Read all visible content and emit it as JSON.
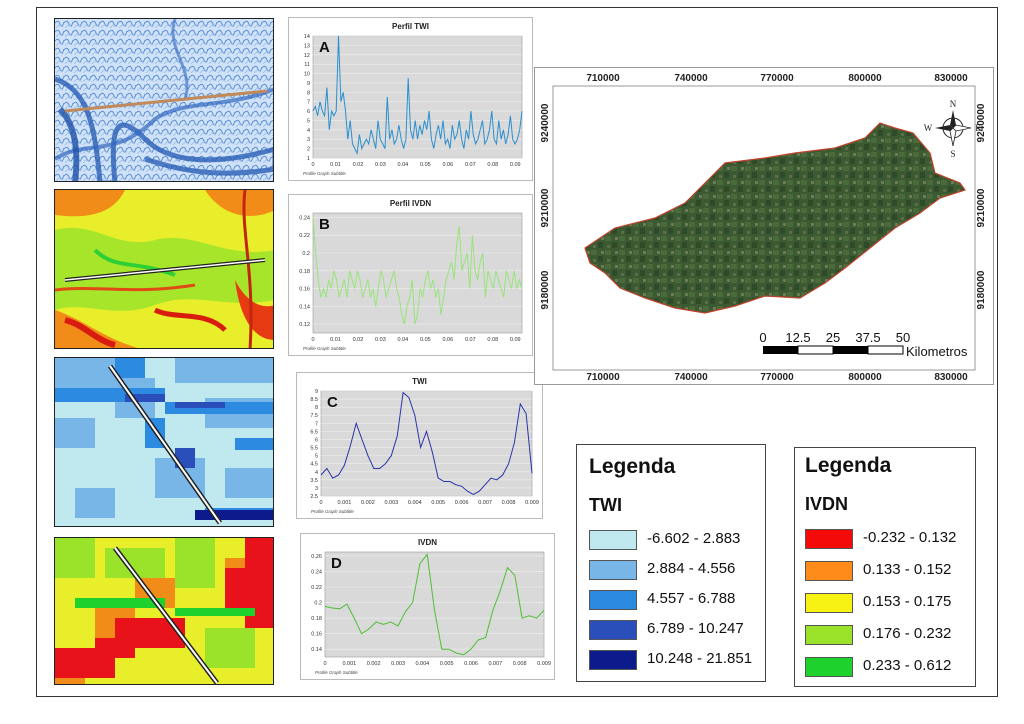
{
  "profiles": [
    {
      "letter": "A",
      "title": "Perfil TWI",
      "subtitle": "Profile Graph Subtitle",
      "color": "#2a8fcf",
      "y_ticks": [
        "1",
        "2",
        "3",
        "4",
        "5",
        "6",
        "7",
        "8",
        "9",
        "10",
        "11",
        "12",
        "13",
        "14"
      ],
      "ylim": [
        1,
        14
      ],
      "x_ticks": [
        "0",
        "0.01",
        "0.02",
        "0.03",
        "0.04",
        "0.05",
        "0.06",
        "0.07",
        "0.08",
        "0.09"
      ],
      "xlim": [
        0,
        0.093
      ],
      "values": [
        6,
        6.5,
        5.5,
        7,
        6,
        5.5,
        8.5,
        4,
        6,
        5.5,
        6,
        14,
        7,
        8,
        6,
        3,
        5,
        2.5,
        2,
        1.5,
        3.5,
        2,
        2.5,
        3,
        2.5,
        4,
        3,
        2,
        5,
        3,
        2.5,
        2,
        7.5,
        3,
        4,
        2.5,
        3,
        4.5,
        3,
        2,
        3,
        9.5,
        4,
        3,
        5,
        3,
        4.5,
        3.5,
        5,
        4,
        6,
        3,
        2,
        3.5,
        4.5,
        3,
        5,
        2.5,
        3,
        2,
        4.5,
        3,
        3.5,
        5,
        3,
        2,
        4,
        3,
        6,
        3.5,
        2.5,
        3,
        4,
        5,
        2.5,
        3,
        4,
        6,
        3,
        2.5,
        5,
        3,
        4,
        2.5,
        3.5,
        5.5,
        3,
        2.5,
        3,
        4,
        6
      ]
    },
    {
      "letter": "B",
      "title": "Perfil IVDN",
      "subtitle": "Profile Graph Subtitle",
      "color": "#98e47a",
      "y_ticks": [
        "0.12",
        "0.14",
        "0.16",
        "0.18",
        "0.2",
        "0.22",
        "0.24"
      ],
      "ylim": [
        0.11,
        0.245
      ],
      "x_ticks": [
        "0",
        "0.01",
        "0.02",
        "0.03",
        "0.04",
        "0.05",
        "0.06",
        "0.07",
        "0.08",
        "0.09"
      ],
      "xlim": [
        0,
        0.093
      ],
      "values": [
        0.24,
        0.2,
        0.17,
        0.15,
        0.16,
        0.15,
        0.17,
        0.16,
        0.18,
        0.17,
        0.15,
        0.16,
        0.17,
        0.15,
        0.18,
        0.17,
        0.16,
        0.18,
        0.17,
        0.15,
        0.16,
        0.17,
        0.15,
        0.16,
        0.14,
        0.16,
        0.18,
        0.17,
        0.15,
        0.16,
        0.17,
        0.18,
        0.16,
        0.15,
        0.13,
        0.12,
        0.14,
        0.15,
        0.17,
        0.12,
        0.13,
        0.16,
        0.15,
        0.17,
        0.18,
        0.16,
        0.17,
        0.15,
        0.16,
        0.13,
        0.15,
        0.17,
        0.18,
        0.19,
        0.17,
        0.21,
        0.23,
        0.18,
        0.19,
        0.2,
        0.16,
        0.22,
        0.18,
        0.17,
        0.19,
        0.2,
        0.15,
        0.18,
        0.17,
        0.16,
        0.18,
        0.17,
        0.16,
        0.15,
        0.18,
        0.17,
        0.16,
        0.18,
        0.16,
        0.17,
        0.16
      ]
    },
    {
      "letter": "C",
      "title": "TWI",
      "subtitle": "Profile Graph Subtitle",
      "color": "#2a34a8",
      "y_ticks": [
        "2.5",
        "3",
        "3.5",
        "4",
        "4.5",
        "5",
        "5.5",
        "6",
        "6.5",
        "7",
        "7.5",
        "8",
        "8.5",
        "9"
      ],
      "ylim": [
        2.5,
        9
      ],
      "x_ticks": [
        "0",
        "0.001",
        "0.002",
        "0.003",
        "0.004",
        "0.005",
        "0.006",
        "0.007",
        "0.008",
        "0.009"
      ],
      "xlim": [
        0,
        0.009
      ],
      "values": [
        3.8,
        4.2,
        3.6,
        3.8,
        4.4,
        5.6,
        7,
        6,
        5,
        4.2,
        4.2,
        4.5,
        5,
        6.2,
        8.9,
        8.6,
        7.5,
        5.5,
        6.5,
        5.2,
        3.6,
        3.4,
        3.4,
        3.2,
        3.1,
        2.8,
        2.6,
        2.8,
        3.2,
        3.6,
        3.5,
        3.8,
        4.5,
        5.8,
        8.2,
        7.6,
        3.9
      ]
    },
    {
      "letter": "D",
      "title": "IVDN",
      "subtitle": "Profile Graph Subtitle",
      "color": "#4fbf35",
      "y_ticks": [
        "0.14",
        "0.16",
        "0.18",
        "0.2",
        "0.22",
        "0.24",
        "0.26"
      ],
      "ylim": [
        0.13,
        0.265
      ],
      "x_ticks": [
        "0",
        "0.001",
        "0.002",
        "0.003",
        "0.004",
        "0.005",
        "0.006",
        "0.007",
        "0.008",
        "0.009"
      ],
      "xlim": [
        0,
        0.009
      ],
      "values": [
        0.195,
        0.193,
        0.192,
        0.198,
        0.18,
        0.16,
        0.166,
        0.175,
        0.172,
        0.175,
        0.17,
        0.188,
        0.2,
        0.25,
        0.262,
        0.19,
        0.14,
        0.14,
        0.135,
        0.133,
        0.14,
        0.152,
        0.155,
        0.19,
        0.215,
        0.245,
        0.235,
        0.18,
        0.183,
        0.18,
        0.19
      ]
    }
  ],
  "map": {
    "x_ticks": [
      "710000",
      "740000",
      "770000",
      "800000",
      "830000"
    ],
    "y_ticks": [
      "9240000",
      "9210000",
      "9180000"
    ],
    "compass": {
      "n": "N",
      "s": "S",
      "e": "E",
      "w": "W"
    },
    "scale": {
      "labels": [
        "0",
        "12.5",
        "25",
        "37.5",
        "50"
      ],
      "unit": "Kilometros"
    }
  },
  "legend_twi": {
    "title": "Legenda",
    "subtitle": "TWI",
    "items": [
      {
        "label": "-6.602 - 2.883",
        "color": "#bfe9ef"
      },
      {
        "label": "2.884 - 4.556",
        "color": "#78b6e8"
      },
      {
        "label": "4.557 - 6.788",
        "color": "#2c8be0"
      },
      {
        "label": "6.789 - 10.247",
        "color": "#2a4fba"
      },
      {
        "label": "10.248 - 21.851",
        "color": "#0d1a8c"
      }
    ]
  },
  "legend_ivdn": {
    "title": "Legenda",
    "subtitle": "IVDN",
    "items": [
      {
        "label": "-0.232 - 0.132",
        "color": "#f50a0a"
      },
      {
        "label": "0.133 - 0.152",
        "color": "#ff8c1a"
      },
      {
        "label": "0.153 - 0.175",
        "color": "#f7f214"
      },
      {
        "label": "0.176 - 0.232",
        "color": "#9be32a"
      },
      {
        "label": "0.233 - 0.612",
        "color": "#1ed12c"
      }
    ]
  }
}
